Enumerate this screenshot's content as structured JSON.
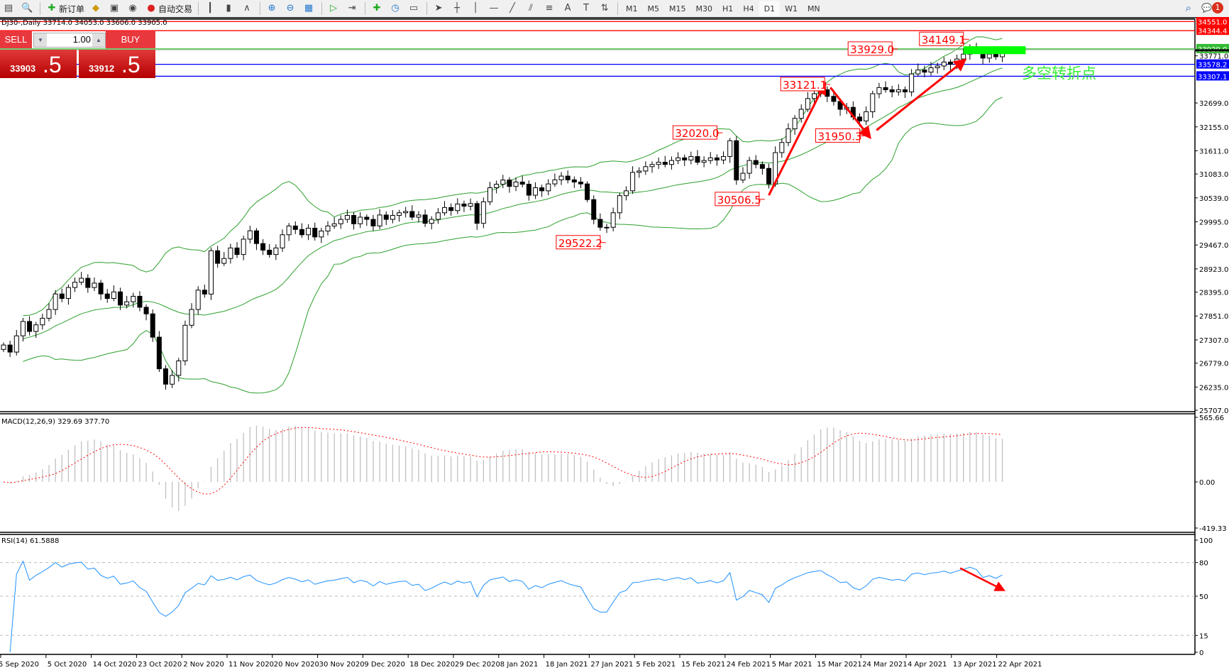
{
  "toolbar": {
    "items": [
      {
        "icon": "new-chart-icon"
      },
      {
        "icon": "zoom-window-icon"
      },
      {
        "icon": "new-order-icon",
        "label": "新订单"
      },
      {
        "icon": "metaeditor-icon"
      },
      {
        "icon": "terminal-icon"
      },
      {
        "icon": "signals-icon"
      },
      {
        "icon": "auto-trading-icon",
        "label": "自动交易"
      },
      {
        "icon": "bar-chart-icon"
      },
      {
        "icon": "candlestick-icon"
      },
      {
        "icon": "line-chart-icon"
      },
      {
        "icon": "zoom-in-icon"
      },
      {
        "icon": "zoom-out-icon"
      },
      {
        "icon": "tile-windows-icon"
      },
      {
        "icon": "chart-shift-icon"
      },
      {
        "icon": "autoscroll-icon"
      },
      {
        "icon": "indicators-icon"
      },
      {
        "icon": "periods-icon"
      },
      {
        "icon": "templates-icon"
      },
      {
        "icon": "cursor-icon"
      },
      {
        "icon": "crosshair-icon"
      },
      {
        "icon": "vertical-line-icon"
      },
      {
        "icon": "horizontal-line-icon"
      },
      {
        "icon": "trendline-icon"
      },
      {
        "icon": "equidistant-channel-icon"
      },
      {
        "icon": "fibonacci-icon"
      },
      {
        "icon": "text-icon",
        "glyph": "A"
      },
      {
        "icon": "text-label-icon",
        "glyph": "T"
      },
      {
        "icon": "arrows-icon"
      }
    ],
    "timeframes": [
      "M1",
      "M5",
      "M15",
      "M30",
      "H1",
      "H4",
      "D1",
      "W1",
      "MN"
    ],
    "active_timeframe": "D1",
    "notification_count": "1"
  },
  "chart_title": "DJ30-,Daily  33714.0 34053.0 33606.0 33905.0",
  "trade_panel": {
    "sell_label": "SELL",
    "buy_label": "BUY",
    "lot": "1.00",
    "sell_big": "33903",
    "sell_small": ".5",
    "buy_big": "33912",
    "buy_small": ".5"
  },
  "chart_data": [
    {
      "type": "candlestick",
      "symbol": "DJ30-",
      "timeframe": "Daily",
      "ylim": [
        25707.0,
        34606.0
      ],
      "yticks": [
        "32699.0",
        "32155.0",
        "31611.0",
        "31083.0",
        "30539.0",
        "29995.0",
        "29467.0",
        "28923.0",
        "28395.0",
        "27851.0",
        "27307.0",
        "26779.0",
        "26235.0",
        "25707.0",
        "33771.0"
      ],
      "ytick_values": [
        32699,
        32155,
        31611,
        31083,
        30539,
        29995,
        29467,
        28923,
        28395,
        27851,
        27307,
        26779,
        26235,
        25707,
        33771
      ],
      "xticks": [
        "5 Sep 2020",
        "5 Oct 2020",
        "14 Oct 2020",
        "23 Oct 2020",
        "2 Nov 2020",
        "11 Nov 2020",
        "20 Nov 2020",
        "30 Nov 2020",
        "9 Dec 2020",
        "18 Dec 2020",
        "29 Dec 2020",
        "8 Jan 2021",
        "18 Jan 2021",
        "27 Jan 2021",
        "5 Feb 2021",
        "15 Feb 2021",
        "24 Feb 2021",
        "5 Mar 2021",
        "15 Mar 2021",
        "24 Mar 2021",
        "4 Apr 2021",
        "13 Apr 2021",
        "22 Apr 2021"
      ],
      "close": [
        27191,
        27030,
        27400,
        27727,
        27500,
        27650,
        27800,
        28000,
        28353,
        28250,
        28500,
        28620,
        28710,
        28500,
        28600,
        28353,
        28250,
        28400,
        28100,
        28175,
        28300,
        28050,
        27900,
        27370,
        26650,
        26300,
        26500,
        26830,
        27640,
        28000,
        28440,
        28350,
        29337,
        29050,
        29160,
        29400,
        29250,
        29600,
        29790,
        29500,
        29350,
        29250,
        29400,
        29700,
        29900,
        29820,
        29700,
        29850,
        29650,
        29785,
        29900,
        29950,
        30050,
        30140,
        29950,
        30100,
        30050,
        29900,
        30150,
        30050,
        30140,
        30200,
        30230,
        30100,
        30150,
        29960,
        30050,
        30200,
        30320,
        30250,
        30400,
        30350,
        30410,
        29960,
        30450,
        30770,
        30850,
        30946,
        30800,
        30900,
        30850,
        30600,
        30770,
        30700,
        30857,
        30950,
        31035,
        30950,
        30900,
        30857,
        30500,
        30050,
        29870,
        29870,
        30200,
        30590,
        30700,
        31120,
        31150,
        31250,
        31300,
        31350,
        31300,
        31390,
        31450,
        31400,
        31480,
        31350,
        31390,
        31450,
        31400,
        31480,
        31840,
        30946,
        31100,
        31390,
        31300,
        31210,
        30857,
        31570,
        31800,
        32110,
        32350,
        32555,
        32800,
        32910,
        33000,
        32850,
        32734,
        32555,
        32600,
        32380,
        32290,
        32500,
        32910,
        33050,
        33000,
        32950,
        33000,
        32950,
        33360,
        33450,
        33400,
        33500,
        33540,
        33630,
        33580,
        33700,
        33810,
        33950,
        33900,
        33720,
        33810,
        33750,
        33905
      ],
      "indicator": "Bollinger Bands(20,2)",
      "bollinger_color": "#2ca02c",
      "hlines": [
        {
          "price": 34551.0,
          "label": "34551.0",
          "color": "#ff0000"
        },
        {
          "price": 34344.4,
          "label": "34344.4",
          "color": "#ff0000"
        },
        {
          "price": 33929.0,
          "label": "33929.0",
          "color": "#33bb33"
        },
        {
          "price": 33578.2,
          "label": "33578.2",
          "color": "#0000ff"
        },
        {
          "price": 33307.1,
          "label": "33307.1",
          "color": "#0000ff"
        }
      ],
      "price_labels": [
        {
          "text": "34149.1",
          "bar": 148,
          "price": 34149.1
        },
        {
          "text": "33929.0",
          "bar": 137,
          "price": 33929.0
        },
        {
          "text": "33121.1",
          "bar": 126.6,
          "price": 33121.1
        },
        {
          "text": "32020.0",
          "bar": 110,
          "price": 32020.0
        },
        {
          "text": "31950.3",
          "bar": 132,
          "price": 31950.3
        },
        {
          "text": "30506.5",
          "bar": 116.5,
          "price": 30506.5
        },
        {
          "text": "29522.2",
          "bar": 92,
          "price": 29522.2
        }
      ],
      "arrows": [
        {
          "from": [
            118,
            30600
          ],
          "to": [
            126.5,
            33100
          ]
        },
        {
          "from": [
            127.5,
            33050
          ],
          "to": [
            133.4,
            31950
          ]
        },
        {
          "from": [
            134.6,
            32080
          ],
          "to": [
            148,
            33650
          ]
        }
      ],
      "zone": {
        "bar_from": 148,
        "bar_to": 157.6,
        "price_from": 33810,
        "price_to": 33990,
        "color": "#00ff00"
      },
      "zone_text": {
        "text": "多空转折点",
        "bar": 157,
        "price": 33260,
        "color": "#33ee33"
      }
    },
    {
      "type": "bar+line",
      "indicator": "MACD(12,26,9)",
      "label": "MACD(12,26,9) 329.69 377.70",
      "ylim": [
        -419.33,
        565.66
      ],
      "yticks": [
        "565.66",
        "0.00",
        "-419.33"
      ],
      "histogram_color": "#c0c0c0",
      "signal_color": "#ff0000"
    },
    {
      "type": "line",
      "indicator": "RSI(14)",
      "label": "RSI(14) 61.5888",
      "ylim": [
        0,
        100
      ],
      "yticks": [
        "100",
        "80",
        "50",
        "15",
        "0"
      ],
      "levels": [
        80,
        50,
        15
      ],
      "line_color": "#1e90ff",
      "arrows": [
        {
          "from": [
            147.5,
            75
          ],
          "to": [
            154,
            56
          ]
        }
      ]
    }
  ]
}
